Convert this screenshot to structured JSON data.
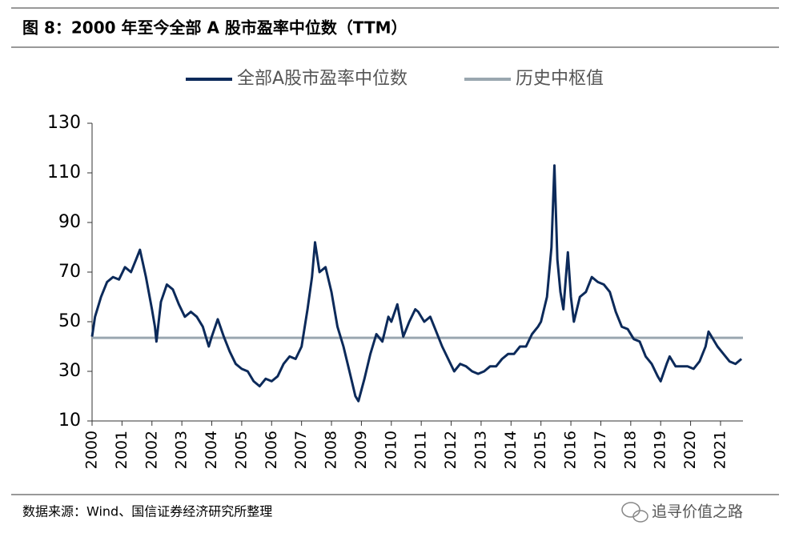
{
  "chart_data": {
    "type": "line",
    "title": "图 8：2000 年至今全部 A 股市盈率中位数（TTM）",
    "source": "数据来源：Wind、国信证券经济研究所整理",
    "watermark": "追寻价值之路",
    "xlim": [
      2000,
      2021.75
    ],
    "xticks": [
      2000,
      2001,
      2002,
      2003,
      2004,
      2005,
      2006,
      2007,
      2008,
      2009,
      2010,
      2011,
      2012,
      2013,
      2014,
      2015,
      2016,
      2017,
      2018,
      2019,
      2020,
      2021
    ],
    "ylim": [
      10,
      130
    ],
    "yticks": [
      10,
      30,
      50,
      70,
      90,
      110,
      130
    ],
    "legend": "top",
    "series": [
      {
        "name": "全部A股市盈率中位数",
        "color": "#0c2a5a",
        "x": [
          2000.0,
          2000.1,
          2000.3,
          2000.5,
          2000.7,
          2000.9,
          2001.1,
          2001.3,
          2001.5,
          2001.6,
          2001.8,
          2002.0,
          2002.1,
          2002.15,
          2002.3,
          2002.5,
          2002.7,
          2002.9,
          2003.1,
          2003.3,
          2003.5,
          2003.7,
          2003.9,
          2004.0,
          2004.2,
          2004.4,
          2004.6,
          2004.8,
          2005.0,
          2005.2,
          2005.4,
          2005.6,
          2005.8,
          2006.0,
          2006.2,
          2006.4,
          2006.6,
          2006.8,
          2007.0,
          2007.2,
          2007.35,
          2007.45,
          2007.6,
          2007.8,
          2008.0,
          2008.2,
          2008.4,
          2008.6,
          2008.8,
          2008.9,
          2009.1,
          2009.3,
          2009.5,
          2009.7,
          2009.9,
          2010.0,
          2010.2,
          2010.4,
          2010.6,
          2010.8,
          2010.9,
          2011.1,
          2011.3,
          2011.5,
          2011.7,
          2011.9,
          2012.1,
          2012.3,
          2012.5,
          2012.7,
          2012.9,
          2013.1,
          2013.3,
          2013.5,
          2013.7,
          2013.9,
          2014.1,
          2014.3,
          2014.5,
          2014.7,
          2014.9,
          2015.0,
          2015.2,
          2015.35,
          2015.45,
          2015.55,
          2015.65,
          2015.75,
          2015.9,
          2016.0,
          2016.1,
          2016.3,
          2016.5,
          2016.7,
          2016.9,
          2017.1,
          2017.3,
          2017.5,
          2017.7,
          2017.9,
          2018.1,
          2018.3,
          2018.5,
          2018.7,
          2018.9,
          2019.0,
          2019.2,
          2019.3,
          2019.5,
          2019.7,
          2019.9,
          2020.1,
          2020.3,
          2020.5,
          2020.6,
          2020.7,
          2020.9,
          2021.1,
          2021.3,
          2021.5,
          2021.7
        ],
        "values": [
          44,
          52,
          60,
          66,
          68,
          67,
          72,
          70,
          76,
          79,
          68,
          55,
          48,
          42,
          58,
          65,
          63,
          57,
          52,
          54,
          52,
          48,
          40,
          44,
          51,
          44,
          38,
          33,
          31,
          30,
          26,
          24,
          27,
          26,
          28,
          33,
          36,
          35,
          40,
          55,
          68,
          82,
          70,
          72,
          62,
          48,
          40,
          30,
          20,
          18,
          27,
          37,
          45,
          42,
          52,
          50,
          57,
          44,
          50,
          55,
          54,
          50,
          52,
          46,
          40,
          35,
          30,
          33,
          32,
          30,
          29,
          30,
          32,
          32,
          35,
          37,
          37,
          40,
          40,
          45,
          48,
          50,
          60,
          80,
          113,
          75,
          62,
          55,
          78,
          60,
          50,
          60,
          62,
          68,
          66,
          65,
          62,
          54,
          48,
          47,
          43,
          42,
          36,
          33,
          28,
          26,
          33,
          36,
          32,
          32,
          32,
          31,
          34,
          40,
          46,
          44,
          40,
          37,
          34,
          33,
          35
        ]
      },
      {
        "name": "历史中枢值",
        "color": "#9aa7b0",
        "x": [
          2000.0,
          2021.75
        ],
        "values": [
          43.5,
          43.5
        ]
      }
    ]
  }
}
